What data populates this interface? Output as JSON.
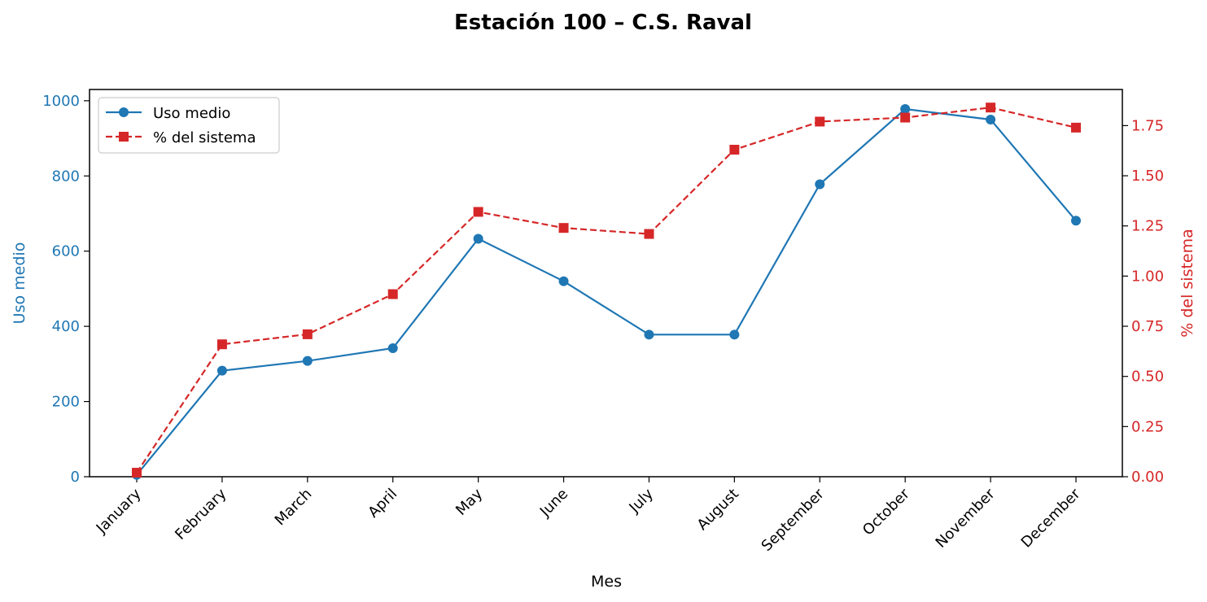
{
  "chart_data": {
    "type": "line",
    "title": "Estación 100 – C.S. Raval",
    "xlabel": "Mes",
    "ylabel_left": "Uso medio",
    "ylabel_right": "% del sistema",
    "categories": [
      "January",
      "February",
      "March",
      "April",
      "May",
      "June",
      "July",
      "August",
      "September",
      "October",
      "November",
      "December"
    ],
    "y_left_lim": [
      0,
      1030
    ],
    "y_left_ticks": [
      0,
      200,
      400,
      600,
      800,
      1000
    ],
    "y_right_lim": [
      0,
      1.93
    ],
    "y_right_ticks": [
      "0.00",
      "0.25",
      "0.50",
      "0.75",
      "1.00",
      "1.25",
      "1.50",
      "1.75"
    ],
    "legend_position": "top-left",
    "grid": false,
    "series": [
      {
        "name": "Uso medio",
        "axis": "left",
        "color": "#1f77b4",
        "marker": "circle",
        "line": "solid",
        "values": [
          5,
          282,
          308,
          342,
          633,
          520,
          378,
          378,
          778,
          978,
          950,
          681
        ]
      },
      {
        "name": "% del sistema",
        "axis": "right",
        "color": "#d62728",
        "marker": "square",
        "line": "dashed",
        "values": [
          0.02,
          0.66,
          0.71,
          0.91,
          1.32,
          1.24,
          1.21,
          1.63,
          1.77,
          1.79,
          1.84,
          1.74
        ]
      }
    ]
  }
}
